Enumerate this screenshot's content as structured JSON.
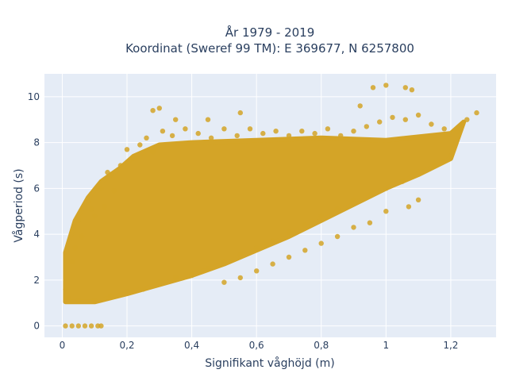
{
  "chart_data": {
    "type": "scatter",
    "title_line1": "År 1979 - 2019",
    "title_line2": "Koordinat (Sweref 99 TM): E 369677, N 6257800",
    "xlabel": "Signifikant våghöjd (m)",
    "ylabel": "Vågperiod (s)",
    "xlim": [
      -0.055,
      1.34
    ],
    "ylim": [
      -0.5,
      11
    ],
    "xticks": [
      0,
      0.2,
      0.4,
      0.6,
      0.8,
      1,
      1.2
    ],
    "xtick_labels": [
      "0",
      "0,2",
      "0,4",
      "0,6",
      "0,8",
      "1",
      "1,2"
    ],
    "yticks": [
      0,
      2,
      4,
      6,
      8,
      10
    ],
    "ytick_labels": [
      "0",
      "2",
      "4",
      "6",
      "8",
      "10"
    ],
    "grid": true,
    "colors": {
      "marker": "#d4a427",
      "plot_bg": "#e5ecf6",
      "grid": "#ffffff",
      "text": "#2a3f5f"
    },
    "series": [
      {
        "points": [
          [
            0.01,
            0
          ],
          [
            0.03,
            0
          ],
          [
            0.05,
            0
          ],
          [
            0.07,
            0
          ],
          [
            0.09,
            0
          ],
          [
            0.11,
            0
          ],
          [
            0.12,
            0
          ],
          [
            0.01,
            1.6
          ],
          [
            0.02,
            1.2
          ],
          [
            0.03,
            2.8
          ],
          [
            0.04,
            3.4
          ],
          [
            0.05,
            4.6
          ],
          [
            0.06,
            3.9
          ],
          [
            0.08,
            5.4
          ],
          [
            0.09,
            5.1
          ],
          [
            0.1,
            4.8
          ],
          [
            0.12,
            6.0
          ],
          [
            0.13,
            5.2
          ],
          [
            0.14,
            6.7
          ],
          [
            0.15,
            6.6
          ],
          [
            0.16,
            5.9
          ],
          [
            0.18,
            7.0
          ],
          [
            0.2,
            7.7
          ],
          [
            0.22,
            7.3
          ],
          [
            0.24,
            7.9
          ],
          [
            0.26,
            8.2
          ],
          [
            0.28,
            7.6
          ],
          [
            0.31,
            8.5
          ],
          [
            0.34,
            8.3
          ],
          [
            0.38,
            8.6
          ],
          [
            0.42,
            8.4
          ],
          [
            0.46,
            8.2
          ],
          [
            0.5,
            8.6
          ],
          [
            0.54,
            8.3
          ],
          [
            0.58,
            8.6
          ],
          [
            0.62,
            8.4
          ],
          [
            0.66,
            8.5
          ],
          [
            0.7,
            8.3
          ],
          [
            0.74,
            8.5
          ],
          [
            0.78,
            8.4
          ],
          [
            0.82,
            8.6
          ],
          [
            0.86,
            8.3
          ],
          [
            0.9,
            8.5
          ],
          [
            0.94,
            8.7
          ],
          [
            0.98,
            8.9
          ],
          [
            1.02,
            9.1
          ],
          [
            1.06,
            9.0
          ],
          [
            1.1,
            9.2
          ],
          [
            1.14,
            8.8
          ],
          [
            1.18,
            8.6
          ],
          [
            1.22,
            8.5
          ],
          [
            1.25,
            9.0
          ],
          [
            1.28,
            9.3
          ],
          [
            0.96,
            10.4
          ],
          [
            1.0,
            10.5
          ],
          [
            1.06,
            10.4
          ],
          [
            1.08,
            10.3
          ],
          [
            0.92,
            9.6
          ],
          [
            0.05,
            1.1
          ],
          [
            0.1,
            1.1
          ],
          [
            0.15,
            1.3
          ],
          [
            0.2,
            1.5
          ],
          [
            0.25,
            1.6
          ],
          [
            0.3,
            1.9
          ],
          [
            0.35,
            2.1
          ],
          [
            0.4,
            2.2
          ],
          [
            0.45,
            2.5
          ],
          [
            0.5,
            2.8
          ],
          [
            0.55,
            3.1
          ],
          [
            0.6,
            3.4
          ],
          [
            0.65,
            3.7
          ],
          [
            0.7,
            4.1
          ],
          [
            0.75,
            4.4
          ],
          [
            0.8,
            4.8
          ],
          [
            0.85,
            5.1
          ],
          [
            0.9,
            5.5
          ],
          [
            0.95,
            5.7
          ],
          [
            1.0,
            6.0
          ],
          [
            1.05,
            6.3
          ],
          [
            1.1,
            6.7
          ],
          [
            1.15,
            7.0
          ],
          [
            1.2,
            7.4
          ],
          [
            0.5,
            1.9
          ],
          [
            0.55,
            2.1
          ],
          [
            0.6,
            2.4
          ],
          [
            0.65,
            2.7
          ],
          [
            0.7,
            3.0
          ],
          [
            0.75,
            3.3
          ],
          [
            0.8,
            3.6
          ],
          [
            0.85,
            3.9
          ],
          [
            0.9,
            4.3
          ],
          [
            0.95,
            4.5
          ],
          [
            1.0,
            5.0
          ],
          [
            1.07,
            5.2
          ],
          [
            1.1,
            5.5
          ],
          [
            0.55,
            9.3
          ],
          [
            0.45,
            9.0
          ],
          [
            0.35,
            9.0
          ],
          [
            0.28,
            9.4
          ],
          [
            0.3,
            9.5
          ]
        ]
      }
    ]
  }
}
